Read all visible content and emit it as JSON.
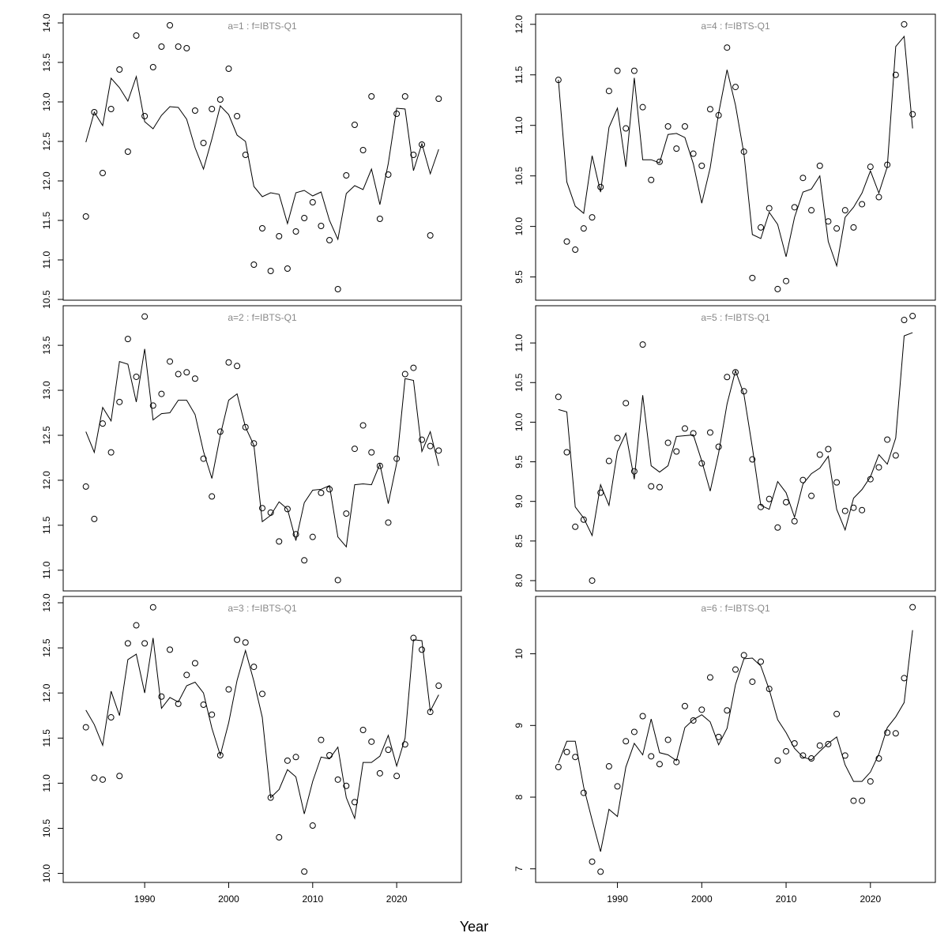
{
  "xlabel": "Year",
  "chart_data": [
    {
      "type": "line",
      "title": "a=1 : f=IBTS-Q1",
      "x": [
        1983,
        1984,
        1985,
        1986,
        1987,
        1988,
        1989,
        1990,
        1991,
        1992,
        1993,
        1994,
        1995,
        1996,
        1997,
        1998,
        1999,
        2000,
        2001,
        2002,
        2003,
        2004,
        2005,
        2006,
        2007,
        2008,
        2009,
        2010,
        2011,
        2012,
        2013,
        2014,
        2015,
        2016,
        2017,
        2018,
        2019,
        2020,
        2021,
        2022,
        2023,
        2024,
        2025
      ],
      "series": [
        {
          "mode": "points",
          "color": "#000000",
          "values": [
            11.55,
            12.87,
            12.1,
            12.91,
            13.41,
            12.37,
            13.84,
            12.82,
            13.44,
            13.7,
            13.97,
            13.7,
            13.68,
            12.89,
            12.48,
            12.91,
            13.03,
            13.42,
            12.82,
            12.33,
            10.94,
            11.4,
            10.86,
            11.3,
            10.89,
            11.36,
            11.53,
            11.73,
            11.43,
            11.25,
            10.63,
            12.07,
            12.71,
            12.39,
            13.07,
            11.52,
            12.08,
            12.85,
            13.07,
            12.33,
            12.46,
            11.31,
            13.04
          ]
        },
        {
          "mode": "lines",
          "color": "#000000",
          "values": [
            12.49,
            12.87,
            12.7,
            13.3,
            13.18,
            13.01,
            13.32,
            12.75,
            12.66,
            12.83,
            12.94,
            12.93,
            12.78,
            12.42,
            12.15,
            12.53,
            12.95,
            12.84,
            12.58,
            12.5,
            11.93,
            11.8,
            11.85,
            11.83,
            11.46,
            11.85,
            11.88,
            11.81,
            11.86,
            11.5,
            11.26,
            11.84,
            11.94,
            11.89,
            12.15,
            11.7,
            12.22,
            12.92,
            12.91,
            12.13,
            12.47,
            12.09,
            12.4
          ]
        }
      ],
      "xlim": [
        1980.3,
        2027.7
      ],
      "ylim": [
        10.49,
        14.11
      ],
      "yticks": [
        10.5,
        {
          "value": 11,
          "label": "11.0"
        },
        11.5,
        {
          "value": 12,
          "label": "12.0"
        },
        12.5,
        {
          "value": 13,
          "label": "13.0"
        },
        13.5,
        {
          "value": 14,
          "label": "14.0"
        }
      ]
    },
    {
      "type": "line",
      "title": "a=2 : f=IBTS-Q1",
      "x": [
        1983,
        1984,
        1985,
        1986,
        1987,
        1988,
        1989,
        1990,
        1991,
        1992,
        1993,
        1994,
        1995,
        1996,
        1997,
        1998,
        1999,
        2000,
        2001,
        2002,
        2003,
        2004,
        2005,
        2006,
        2007,
        2008,
        2009,
        2010,
        2011,
        2012,
        2013,
        2014,
        2015,
        2016,
        2017,
        2018,
        2019,
        2020,
        2021,
        2022,
        2023,
        2024,
        2025
      ],
      "series": [
        {
          "mode": "points",
          "color": "#000000",
          "values": [
            11.93,
            11.57,
            12.63,
            12.31,
            12.87,
            13.57,
            13.15,
            13.82,
            12.83,
            12.96,
            13.32,
            13.18,
            13.2,
            13.13,
            12.24,
            11.82,
            12.54,
            13.31,
            13.27,
            12.59,
            12.41,
            11.69,
            11.64,
            11.32,
            11.68,
            11.4,
            11.11,
            11.37,
            11.86,
            11.9,
            10.89,
            11.63,
            12.35,
            12.61,
            12.31,
            12.16,
            11.53,
            12.24,
            13.18,
            13.25,
            12.45,
            12.38,
            12.33
          ]
        },
        {
          "mode": "lines",
          "color": "#000000",
          "values": [
            12.54,
            12.31,
            12.81,
            12.66,
            13.32,
            13.29,
            12.87,
            13.46,
            12.67,
            12.74,
            12.75,
            12.89,
            12.89,
            12.73,
            12.32,
            12.02,
            12.5,
            12.89,
            12.96,
            12.59,
            12.39,
            11.54,
            11.61,
            11.76,
            11.68,
            11.33,
            11.75,
            11.89,
            11.9,
            11.94,
            11.37,
            11.26,
            11.95,
            11.96,
            11.95,
            12.18,
            11.74,
            12.19,
            13.13,
            13.11,
            12.32,
            12.54,
            12.16
          ]
        }
      ],
      "xlim": [
        1980.3,
        2027.7
      ],
      "ylim": [
        10.77,
        13.94
      ],
      "yticks": [
        {
          "value": 11,
          "label": "11.0"
        },
        11.5,
        {
          "value": 12,
          "label": "12.0"
        },
        12.5,
        {
          "value": 13,
          "label": "13.0"
        },
        13.5
      ]
    },
    {
      "type": "line",
      "title": "a=3 : f=IBTS-Q1",
      "x": [
        1983,
        1984,
        1985,
        1986,
        1987,
        1988,
        1989,
        1990,
        1991,
        1992,
        1993,
        1994,
        1995,
        1996,
        1997,
        1998,
        1999,
        2000,
        2001,
        2002,
        2003,
        2004,
        2005,
        2006,
        2007,
        2008,
        2009,
        2010,
        2011,
        2012,
        2013,
        2014,
        2015,
        2016,
        2017,
        2018,
        2019,
        2020,
        2021,
        2022,
        2023,
        2024,
        2025
      ],
      "series": [
        {
          "mode": "points",
          "color": "#000000",
          "values": [
            11.62,
            11.06,
            11.04,
            11.73,
            11.08,
            12.55,
            12.75,
            12.55,
            12.95,
            11.96,
            12.48,
            11.88,
            12.2,
            12.33,
            11.87,
            11.76,
            11.31,
            12.04,
            12.59,
            12.56,
            12.29,
            11.99,
            10.84,
            10.4,
            11.25,
            11.29,
            10.02,
            10.53,
            11.48,
            11.31,
            11.04,
            10.97,
            10.79,
            11.59,
            11.46,
            11.11,
            11.37,
            11.08,
            11.43,
            12.61,
            12.48,
            11.79,
            12.08
          ]
        },
        {
          "mode": "lines",
          "color": "#000000",
          "values": [
            11.81,
            11.65,
            11.42,
            12.02,
            11.75,
            12.37,
            12.43,
            12.0,
            12.61,
            11.83,
            11.95,
            11.9,
            12.08,
            12.12,
            12.0,
            11.61,
            11.31,
            11.67,
            12.14,
            12.47,
            12.13,
            11.73,
            10.84,
            10.93,
            11.15,
            11.07,
            10.66,
            11.02,
            11.29,
            11.27,
            11.4,
            10.84,
            10.61,
            11.23,
            11.23,
            11.3,
            11.53,
            11.19,
            11.5,
            12.59,
            12.58,
            11.8,
            11.98
          ]
        }
      ],
      "xlim": [
        1980.3,
        2027.7
      ],
      "ylim": [
        9.9,
        13.07
      ],
      "xticks": [
        1990,
        2000,
        2010,
        2020
      ],
      "yticks": [
        {
          "value": 10,
          "label": "10.0"
        },
        10.5,
        {
          "value": 11,
          "label": "11.0"
        },
        11.5,
        {
          "value": 12,
          "label": "12.0"
        },
        12.5,
        {
          "value": 13,
          "label": "13.0"
        }
      ]
    },
    {
      "type": "line",
      "title": "a=4 : f=IBTS-Q1",
      "x": [
        1983,
        1984,
        1985,
        1986,
        1987,
        1988,
        1989,
        1990,
        1991,
        1992,
        1993,
        1994,
        1995,
        1996,
        1997,
        1998,
        1999,
        2000,
        2001,
        2002,
        2003,
        2004,
        2005,
        2006,
        2007,
        2008,
        2009,
        2010,
        2011,
        2012,
        2013,
        2014,
        2015,
        2016,
        2017,
        2018,
        2019,
        2020,
        2021,
        2022,
        2023,
        2024,
        2025
      ],
      "series": [
        {
          "mode": "points",
          "color": "#000000",
          "values": [
            11.45,
            9.85,
            9.77,
            9.98,
            10.09,
            10.39,
            11.34,
            11.54,
            10.97,
            11.54,
            11.18,
            10.46,
            10.64,
            10.99,
            10.77,
            10.99,
            10.72,
            10.6,
            11.16,
            11.1,
            11.77,
            11.38,
            10.74,
            9.49,
            9.99,
            10.18,
            9.38,
            9.46,
            10.19,
            10.48,
            10.16,
            10.6,
            10.05,
            9.98,
            10.16,
            9.99,
            10.22,
            10.59,
            10.29,
            10.61,
            11.5,
            12.0,
            11.11
          ]
        },
        {
          "mode": "lines",
          "color": "#000000",
          "values": [
            11.45,
            10.44,
            10.2,
            10.13,
            10.7,
            10.34,
            10.98,
            11.17,
            10.59,
            11.47,
            10.66,
            10.66,
            10.63,
            10.91,
            10.92,
            10.88,
            10.62,
            10.23,
            10.58,
            11.12,
            11.55,
            11.2,
            10.72,
            9.92,
            9.88,
            10.14,
            10.02,
            9.7,
            10.09,
            10.34,
            10.37,
            10.5,
            9.85,
            9.61,
            10.09,
            10.19,
            10.33,
            10.55,
            10.33,
            10.59,
            11.78,
            11.88,
            10.97
          ]
        }
      ],
      "xlim": [
        1980.3,
        2027.7
      ],
      "ylim": [
        9.27,
        12.1
      ],
      "yticks": [
        9.5,
        {
          "value": 10,
          "label": "10.0"
        },
        10.5,
        {
          "value": 11,
          "label": "11.0"
        },
        11.5,
        {
          "value": 12,
          "label": "12.0"
        }
      ]
    },
    {
      "type": "line",
      "title": "a=5 : f=IBTS-Q1",
      "x": [
        1983,
        1984,
        1985,
        1986,
        1987,
        1988,
        1989,
        1990,
        1991,
        1992,
        1993,
        1994,
        1995,
        1996,
        1997,
        1998,
        1999,
        2000,
        2001,
        2002,
        2003,
        2004,
        2005,
        2006,
        2007,
        2008,
        2009,
        2010,
        2011,
        2012,
        2013,
        2014,
        2015,
        2016,
        2017,
        2018,
        2019,
        2020,
        2021,
        2022,
        2023,
        2024,
        2025
      ],
      "series": [
        {
          "mode": "points",
          "color": "#000000",
          "values": [
            10.32,
            9.62,
            8.68,
            8.77,
            8.0,
            9.11,
            9.51,
            9.8,
            10.24,
            9.38,
            10.98,
            9.19,
            9.18,
            9.74,
            9.63,
            9.92,
            9.86,
            9.48,
            9.87,
            9.69,
            10.57,
            10.63,
            10.39,
            9.53,
            8.93,
            9.03,
            8.67,
            8.99,
            8.75,
            9.27,
            9.07,
            9.59,
            9.66,
            9.24,
            8.88,
            8.92,
            8.89,
            9.28,
            9.43,
            9.78,
            9.58,
            11.29,
            11.34
          ]
        },
        {
          "mode": "lines",
          "color": "#000000",
          "values": [
            10.16,
            10.13,
            8.93,
            8.79,
            8.57,
            9.21,
            8.95,
            9.63,
            9.86,
            9.28,
            10.34,
            9.45,
            9.37,
            9.45,
            9.82,
            9.83,
            9.84,
            9.51,
            9.13,
            9.61,
            10.23,
            10.65,
            10.35,
            9.68,
            8.95,
            8.9,
            9.25,
            9.11,
            8.8,
            9.22,
            9.35,
            9.42,
            9.57,
            8.9,
            8.64,
            9.04,
            9.15,
            9.31,
            9.59,
            9.47,
            9.8,
            11.09,
            11.13
          ]
        }
      ],
      "xlim": [
        1980.3,
        2027.7
      ],
      "ylim": [
        7.87,
        11.47
      ],
      "yticks": [
        {
          "value": 8,
          "label": "8.0"
        },
        8.5,
        {
          "value": 9,
          "label": "9.0"
        },
        9.5,
        {
          "value": 10,
          "label": "10.0"
        },
        10.5,
        {
          "value": 11,
          "label": "11.0"
        }
      ]
    },
    {
      "type": "line",
      "title": "a=6 : f=IBTS-Q1",
      "x": [
        1983,
        1984,
        1985,
        1986,
        1987,
        1988,
        1989,
        1990,
        1991,
        1992,
        1993,
        1994,
        1995,
        1996,
        1997,
        1998,
        1999,
        2000,
        2001,
        2002,
        2003,
        2004,
        2005,
        2006,
        2007,
        2008,
        2009,
        2010,
        2011,
        2012,
        2013,
        2014,
        2015,
        2016,
        2017,
        2018,
        2019,
        2020,
        2021,
        2022,
        2023,
        2024,
        2025
      ],
      "series": [
        {
          "mode": "points",
          "color": "#000000",
          "values": [
            8.42,
            8.63,
            8.56,
            8.06,
            7.1,
            6.96,
            8.43,
            8.15,
            8.78,
            8.91,
            9.13,
            8.57,
            8.46,
            8.8,
            8.49,
            9.27,
            9.07,
            9.22,
            9.67,
            8.84,
            9.21,
            9.78,
            9.98,
            9.61,
            9.89,
            9.51,
            8.51,
            8.64,
            8.75,
            8.58,
            8.54,
            8.72,
            8.74,
            9.16,
            8.58,
            7.95,
            7.95,
            8.22,
            8.54,
            8.9,
            8.89,
            9.66,
            10.65
          ]
        },
        {
          "mode": "lines",
          "color": "#000000",
          "values": [
            8.48,
            8.78,
            8.78,
            8.14,
            7.68,
            7.24,
            7.83,
            7.73,
            8.42,
            8.75,
            8.59,
            9.09,
            8.62,
            8.59,
            8.51,
            8.97,
            9.08,
            9.15,
            9.05,
            8.73,
            8.96,
            9.57,
            9.93,
            9.94,
            9.83,
            9.5,
            9.08,
            8.9,
            8.68,
            8.56,
            8.52,
            8.64,
            8.75,
            8.84,
            8.45,
            8.22,
            8.22,
            8.35,
            8.6,
            8.97,
            9.12,
            9.32,
            10.33
          ]
        }
      ],
      "xlim": [
        1980.3,
        2027.7
      ],
      "ylim": [
        6.81,
        10.8
      ],
      "xticks": [
        1990,
        2000,
        2010,
        2020
      ],
      "yticks": [
        7,
        8,
        9,
        10
      ]
    }
  ]
}
